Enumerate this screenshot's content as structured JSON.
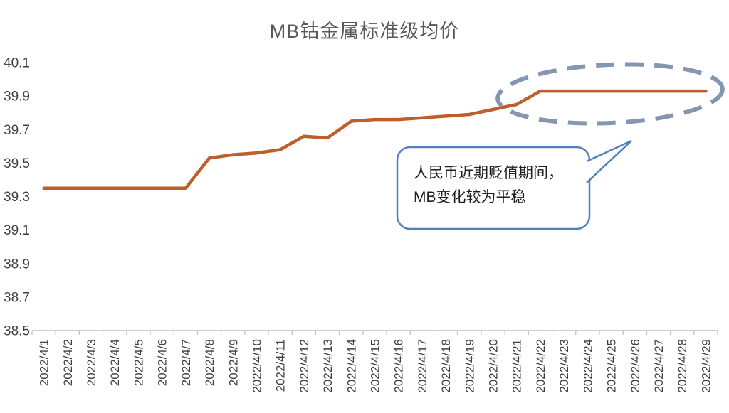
{
  "title": "MB钴金属标准级均价",
  "callout": {
    "line1": "人民币近期贬值期间，",
    "line2": "MB变化较为平稳"
  },
  "colors": {
    "line": "#bf5e2d",
    "ellipse": "#8496b0",
    "callout_border": "#4f81bd",
    "axis": "#bfbfbf",
    "tick_label": "#404040",
    "title": "#595959"
  },
  "chart_data": {
    "type": "line",
    "title": "MB钴金属标准级均价",
    "categories": [
      "2022/4/1",
      "2022/4/2",
      "2022/4/3",
      "2022/4/4",
      "2022/4/5",
      "2022/4/6",
      "2022/4/7",
      "2022/4/8",
      "2022/4/9",
      "2022/4/10",
      "2022/4/11",
      "2022/4/12",
      "2022/4/13",
      "2022/4/14",
      "2022/4/15",
      "2022/4/16",
      "2022/4/17",
      "2022/4/18",
      "2022/4/19",
      "2022/4/20",
      "2022/4/21",
      "2022/4/22",
      "2022/4/23",
      "2022/4/24",
      "2022/4/25",
      "2022/4/26",
      "2022/4/27",
      "2022/4/28",
      "2022/4/29"
    ],
    "series": [
      {
        "name": "MB钴金属标准级均价",
        "values": [
          39.35,
          39.35,
          39.35,
          39.35,
          39.35,
          39.35,
          39.35,
          39.53,
          39.55,
          39.56,
          39.58,
          39.66,
          39.65,
          39.75,
          39.76,
          39.76,
          39.77,
          39.78,
          39.79,
          39.82,
          39.85,
          39.93,
          39.93,
          39.93,
          39.93,
          39.93,
          39.93,
          39.93,
          39.93
        ]
      }
    ],
    "ylim": [
      38.5,
      40.1
    ],
    "y_ticks": [
      40.1,
      39.9,
      39.7,
      39.5,
      39.3,
      39.1,
      38.9,
      38.7,
      38.5
    ],
    "xlabel": "",
    "ylabel": "",
    "grid": false,
    "legend": "none",
    "x_label_rotation": -90,
    "annotations": {
      "ellipse_highlight_over_dates": [
        "2022/4/20",
        "2022/4/29"
      ],
      "callout_text": "人民币近期贬值期间，MB变化较为平稳"
    }
  }
}
